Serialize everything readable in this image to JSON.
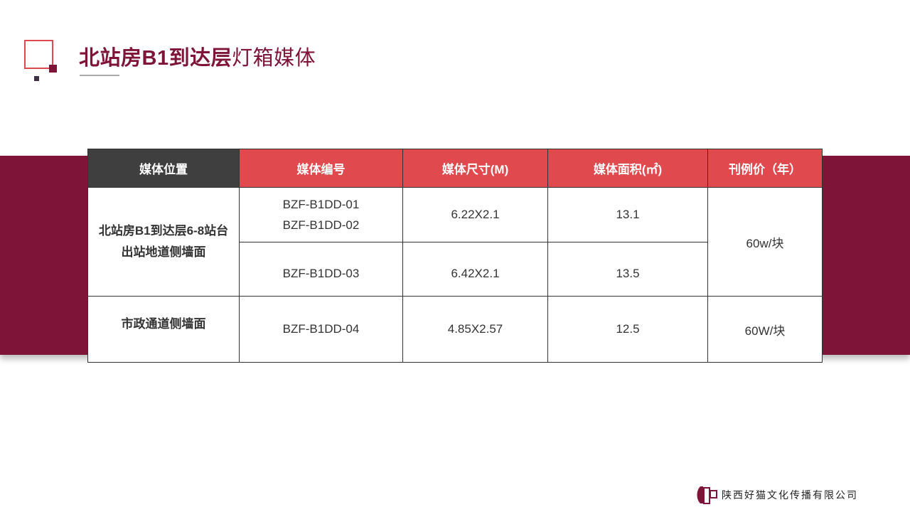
{
  "title": {
    "bold": "北站房B1到达层",
    "normal": "灯箱媒体"
  },
  "table": {
    "headers": [
      "媒体位置",
      "媒体编号",
      "媒体尺寸(M)",
      "媒体面积(㎡)",
      "刊例价（年）"
    ],
    "rows": [
      {
        "location": "北站房B1到达层6-8站台出站地道侧墙面",
        "codes": [
          "BZF-B1DD-01",
          "BZF-B1DD-02"
        ],
        "size": "6.22X2.1",
        "area": "13.1",
        "price": "60w/块"
      },
      {
        "codes": [
          "BZF-B1DD-03"
        ],
        "size": "6.42X2.1",
        "area": "13.5"
      },
      {
        "location": "市政通道侧墙面",
        "codes": [
          "BZF-B1DD-04"
        ],
        "size": "4.85X2.57",
        "area": "12.5",
        "price": "60W/块"
      }
    ]
  },
  "footer": {
    "company": "陕西好猫文化传播有限公司"
  },
  "colors": {
    "brand": "#7e1437",
    "accent": "#e04a4f",
    "header_dark": "#3f3f3f"
  }
}
